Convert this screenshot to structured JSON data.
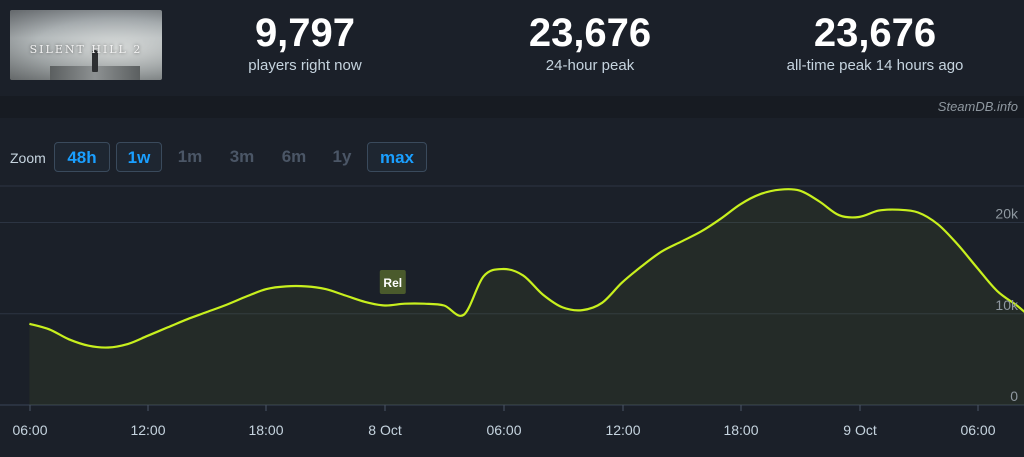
{
  "header": {
    "thumbnail_alt": "SILENT HILL 2",
    "stats": [
      {
        "value": "9,797",
        "label": "players right now"
      },
      {
        "value": "23,676",
        "label": "24-hour peak"
      },
      {
        "value": "23,676",
        "label": "all-time peak 14 hours ago"
      }
    ]
  },
  "credit": "SteamDB.info",
  "zoom": {
    "label": "Zoom",
    "buttons": [
      {
        "label": "48h",
        "active": true
      },
      {
        "label": "1w",
        "active": true
      },
      {
        "label": "1m",
        "active": false
      },
      {
        "label": "3m",
        "active": false
      },
      {
        "label": "6m",
        "active": false
      },
      {
        "label": "1y",
        "active": false
      },
      {
        "label": "max",
        "active": true
      }
    ]
  },
  "chart_data": {
    "type": "area",
    "x_ticks": [
      "06:00",
      "12:00",
      "18:00",
      "8 Oct",
      "06:00",
      "12:00",
      "18:00",
      "9 Oct",
      "06:00"
    ],
    "y_ticks": [
      "0",
      "10k",
      "20k"
    ],
    "ylim": [
      0,
      24000
    ],
    "annotation": {
      "label": "Rel",
      "x": 22.9
    },
    "series": [
      {
        "color": "#c8f01e",
        "points": [
          {
            "x": 4.5,
            "y": 8900
          },
          {
            "x": 5.5,
            "y": 8300
          },
          {
            "x": 6.5,
            "y": 7200
          },
          {
            "x": 7.5,
            "y": 6500
          },
          {
            "x": 8.5,
            "y": 6300
          },
          {
            "x": 9.5,
            "y": 6700
          },
          {
            "x": 10.5,
            "y": 7600
          },
          {
            "x": 11.5,
            "y": 8500
          },
          {
            "x": 12.5,
            "y": 9400
          },
          {
            "x": 13.5,
            "y": 10200
          },
          {
            "x": 14.5,
            "y": 11000
          },
          {
            "x": 15.5,
            "y": 11900
          },
          {
            "x": 16.5,
            "y": 12700
          },
          {
            "x": 17.5,
            "y": 13000
          },
          {
            "x": 18.5,
            "y": 13000
          },
          {
            "x": 19.5,
            "y": 12700
          },
          {
            "x": 20.5,
            "y": 12000
          },
          {
            "x": 21.5,
            "y": 11300
          },
          {
            "x": 22.5,
            "y": 10900
          },
          {
            "x": 23.5,
            "y": 11100
          },
          {
            "x": 24.5,
            "y": 11100
          },
          {
            "x": 25.5,
            "y": 10900
          },
          {
            "x": 26.5,
            "y": 9900
          },
          {
            "x": 27.5,
            "y": 14100
          },
          {
            "x": 28.5,
            "y": 14900
          },
          {
            "x": 29.5,
            "y": 14200
          },
          {
            "x": 30.5,
            "y": 12100
          },
          {
            "x": 31.5,
            "y": 10700
          },
          {
            "x": 32.5,
            "y": 10400
          },
          {
            "x": 33.5,
            "y": 11200
          },
          {
            "x": 34.5,
            "y": 13400
          },
          {
            "x": 35.5,
            "y": 15200
          },
          {
            "x": 36.5,
            "y": 16800
          },
          {
            "x": 37.5,
            "y": 17900
          },
          {
            "x": 38.5,
            "y": 19000
          },
          {
            "x": 39.5,
            "y": 20400
          },
          {
            "x": 40.5,
            "y": 22000
          },
          {
            "x": 41.5,
            "y": 23100
          },
          {
            "x": 42.5,
            "y": 23600
          },
          {
            "x": 43.5,
            "y": 23500
          },
          {
            "x": 44.5,
            "y": 22300
          },
          {
            "x": 45.5,
            "y": 20800
          },
          {
            "x": 46.5,
            "y": 20600
          },
          {
            "x": 47.5,
            "y": 21300
          },
          {
            "x": 48.5,
            "y": 21400
          },
          {
            "x": 49.5,
            "y": 21100
          },
          {
            "x": 50.5,
            "y": 19800
          },
          {
            "x": 51.5,
            "y": 17600
          },
          {
            "x": 52.5,
            "y": 15000
          },
          {
            "x": 53.5,
            "y": 12500
          },
          {
            "x": 54.5,
            "y": 10900
          },
          {
            "x": 55.1,
            "y": 9800
          }
        ]
      }
    ]
  }
}
